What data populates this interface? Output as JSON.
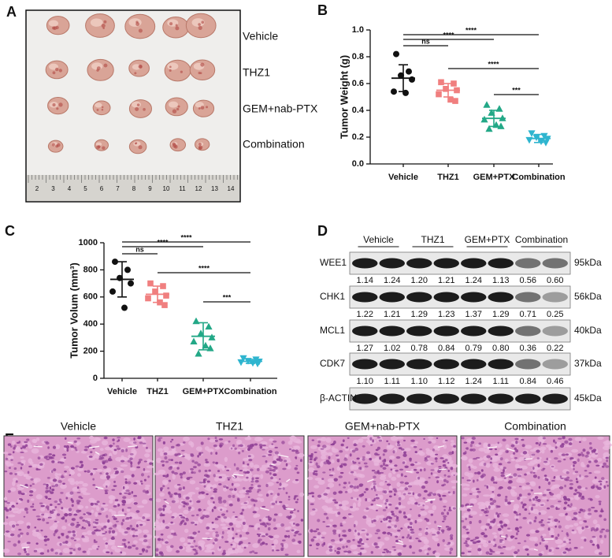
{
  "panel_labels": [
    "A",
    "B",
    "C",
    "D",
    "E"
  ],
  "photo": {
    "rows": [
      "Vehicle",
      "THZ1",
      "GEM+nab-PTX",
      "Combination"
    ],
    "ruler": [
      "2",
      "3",
      "4",
      "5",
      "6",
      "7",
      "8",
      "9",
      "10",
      "11",
      "12",
      "13",
      "14"
    ]
  },
  "chart_data": [
    {
      "type": "strip",
      "ylabel": "Tumor Weight (g)",
      "ylim": [
        0,
        1
      ],
      "yticks": [
        {
          "value": 0,
          "label": "0.0"
        },
        0.2,
        0.4,
        0.6,
        0.8,
        {
          "value": 1,
          "label": "1.0"
        }
      ],
      "groups": [
        {
          "name": "Vehicle",
          "color": "#111111",
          "marker": "circle",
          "values": [
            0.82,
            0.69,
            0.66,
            0.63,
            0.54,
            0.53
          ],
          "mean": 0.64,
          "sd": 0.1
        },
        {
          "name": "THZ1",
          "color": "#f07f7f",
          "marker": "square",
          "values": [
            0.61,
            0.6,
            0.56,
            0.55,
            0.52,
            0.48,
            0.47
          ],
          "mean": 0.55,
          "sd": 0.05
        },
        {
          "name": "GEM+PTX",
          "color": "#23a887",
          "marker": "triangle",
          "values": [
            0.44,
            0.41,
            0.38,
            0.34,
            0.33,
            0.29,
            0.28,
            0.26
          ],
          "mean": 0.34,
          "sd": 0.06
        },
        {
          "name": "Combination",
          "color": "#2fb5cf",
          "marker": "triangle-down",
          "values": [
            0.23,
            0.21,
            0.2,
            0.19,
            0.18,
            0.17,
            0.16
          ],
          "mean": 0.19,
          "sd": 0.03
        }
      ],
      "comparisons": [
        {
          "between": [
            "Vehicle",
            "THZ1"
          ],
          "label": "ns"
        },
        {
          "between": [
            "Vehicle",
            "GEM+PTX"
          ],
          "label": "****"
        },
        {
          "between": [
            "Vehicle",
            "Combination"
          ],
          "label": "****"
        },
        {
          "between": [
            "THZ1",
            "Combination"
          ],
          "label": "****"
        },
        {
          "between": [
            "GEM+PTX",
            "Combination"
          ],
          "label": "***"
        }
      ]
    },
    {
      "type": "strip",
      "ylabel": "Tumor Volum (mm³)",
      "ylim": [
        0,
        1000
      ],
      "yticks": [
        0,
        200,
        400,
        600,
        800,
        1000
      ],
      "groups": [
        {
          "name": "Vehicle",
          "color": "#111111",
          "marker": "circle",
          "values": [
            860,
            800,
            740,
            700,
            640,
            520
          ],
          "mean": 730,
          "sd": 130
        },
        {
          "name": "THZ1",
          "color": "#f07f7f",
          "marker": "square",
          "values": [
            700,
            680,
            640,
            610,
            590,
            560,
            540
          ],
          "mean": 620,
          "sd": 60
        },
        {
          "name": "GEM+PTX",
          "color": "#23a887",
          "marker": "triangle",
          "values": [
            420,
            380,
            330,
            300,
            270,
            240,
            220,
            180
          ],
          "mean": 310,
          "sd": 100
        },
        {
          "name": "Combination",
          "color": "#2fb5cf",
          "marker": "triangle-down",
          "values": [
            150,
            140,
            130,
            125,
            120,
            115,
            110
          ],
          "mean": 125,
          "sd": 15
        }
      ],
      "comparisons": [
        {
          "between": [
            "Vehicle",
            "THZ1"
          ],
          "label": "ns"
        },
        {
          "between": [
            "Vehicle",
            "GEM+PTX"
          ],
          "label": "****"
        },
        {
          "between": [
            "Vehicle",
            "Combination"
          ],
          "label": "****"
        },
        {
          "between": [
            "THZ1",
            "Combination"
          ],
          "label": "****"
        },
        {
          "between": [
            "GEM+PTX",
            "Combination"
          ],
          "label": "***"
        }
      ]
    }
  ],
  "blot": {
    "groups": [
      "Vehicle",
      "THZ1",
      "GEM+PTX",
      "Combination"
    ],
    "rows": [
      {
        "protein": "WEE1",
        "size": "95kDa",
        "quant": [
          "1.14",
          "1.24",
          "1.20",
          "1.21",
          "1.24",
          "1.13",
          "0.56",
          "0.60"
        ]
      },
      {
        "protein": "CHK1",
        "size": "56kDa",
        "quant": [
          "1.22",
          "1.21",
          "1.29",
          "1.23",
          "1.37",
          "1.29",
          "0.71",
          "0.25"
        ]
      },
      {
        "protein": "MCL1",
        "size": "40kDa",
        "quant": [
          "1.27",
          "1.02",
          "0.78",
          "0.84",
          "0.79",
          "0.80",
          "0.36",
          "0.22"
        ]
      },
      {
        "protein": "CDK7",
        "size": "37kDa",
        "quant": [
          "1.10",
          "1.11",
          "1.10",
          "1.12",
          "1.24",
          "1.11",
          "0.84",
          "0.46"
        ]
      },
      {
        "protein": "β-ACTIN",
        "size": "45kDa"
      }
    ]
  },
  "histology": {
    "titles": [
      "Vehicle",
      "THZ1",
      "GEM+nab-PTX",
      "Combination"
    ]
  }
}
